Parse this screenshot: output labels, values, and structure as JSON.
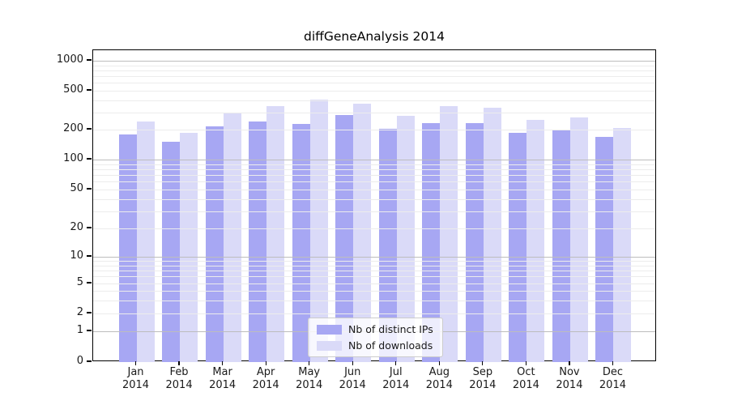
{
  "title": "diffGeneAnalysis 2014",
  "legend": {
    "items": [
      {
        "label": "Nb of distinct IPs",
        "color": "#a7a7f3"
      },
      {
        "label": "Nb of downloads",
        "color": "#dadaf8"
      }
    ]
  },
  "y_axis": {
    "tick_labels": [
      "1000",
      "500",
      "200",
      "100",
      "50",
      "20",
      "10",
      "5",
      "2",
      "1",
      "0"
    ]
  },
  "x_axis": {
    "tick_labels": [
      "Jan 2014",
      "Feb 2014",
      "Mar 2014",
      "Apr 2014",
      "May 2014",
      "Jun 2014",
      "Jul 2014",
      "Aug 2014",
      "Sep 2014",
      "Oct 2014",
      "Nov 2014",
      "Dec 2014"
    ]
  },
  "colors": {
    "distinct_ips": "#a7a7f3",
    "downloads": "#dadaf8",
    "grid_decade": "#bdbdbd",
    "grid_minor": "#ececec",
    "spine": "#000000"
  },
  "chart_data": {
    "type": "bar",
    "title": "diffGeneAnalysis 2014",
    "categories": [
      "Jan 2014",
      "Feb 2014",
      "Mar 2014",
      "Apr 2014",
      "May 2014",
      "Jun 2014",
      "Jul 2014",
      "Aug 2014",
      "Sep 2014",
      "Oct 2014",
      "Nov 2014",
      "Dec 2014"
    ],
    "series": [
      {
        "name": "Nb of distinct IPs",
        "color": "#a7a7f3",
        "values": [
          180,
          150,
          215,
          242,
          229,
          281,
          205,
          233,
          234,
          187,
          195,
          169
        ]
      },
      {
        "name": "Nb of downloads",
        "color": "#dadaf8",
        "values": [
          240,
          186,
          296,
          348,
          408,
          370,
          275,
          350,
          335,
          252,
          265,
          206
        ]
      }
    ],
    "xlabel": "",
    "ylabel": "",
    "yscale": "symlog",
    "yticks": [
      0,
      1,
      2,
      5,
      10,
      20,
      50,
      100,
      200,
      500,
      1000
    ],
    "ylim": [
      0,
      1280
    ],
    "grid": true,
    "legend_position": "lower center"
  }
}
